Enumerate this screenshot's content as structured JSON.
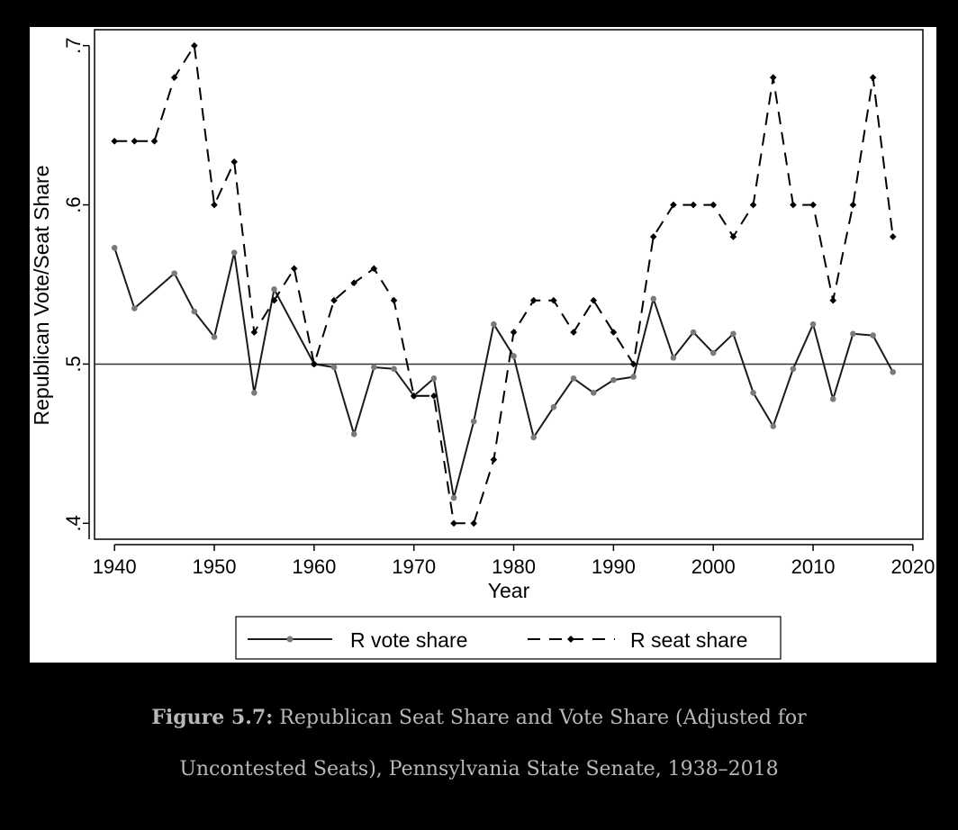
{
  "chart_data": {
    "type": "line",
    "ylabel": "Republican Vote/Seat Share",
    "xlabel": "Year",
    "xlim": [
      1938,
      2021
    ],
    "ylim": [
      0.39,
      0.71
    ],
    "xticks": [
      1940,
      1950,
      1960,
      1970,
      1980,
      1990,
      2000,
      2010,
      2020
    ],
    "xtick_labels": [
      "1940",
      "1950",
      "1960",
      "1970",
      "1980",
      "1990",
      "2000",
      "2010",
      "2020"
    ],
    "yticks": [
      0.4,
      0.5,
      0.6,
      0.7
    ],
    "ytick_labels": [
      ".4",
      ".5",
      ".6",
      ".7"
    ],
    "reference_line_y": 0.5,
    "grid": false,
    "legend_position": "bottom",
    "series": [
      {
        "name": "R vote share",
        "style": "solid",
        "marker": "dot",
        "color": "#1a1a1a",
        "marker_color": "#7a7a7a",
        "x": [
          1940,
          1942,
          1946,
          1948,
          1950,
          1952,
          1954,
          1956,
          1960,
          1962,
          1964,
          1966,
          1968,
          1970,
          1972,
          1974,
          1976,
          1978,
          1980,
          1982,
          1984,
          1986,
          1988,
          1990,
          1992,
          1994,
          1996,
          1998,
          2000,
          2002,
          2004,
          2006,
          2008,
          2010,
          2012,
          2014,
          2016,
          2018
        ],
        "y": [
          0.573,
          0.535,
          0.557,
          0.533,
          0.517,
          0.57,
          0.482,
          0.547,
          0.5,
          0.498,
          0.456,
          0.498,
          0.497,
          0.48,
          0.491,
          0.416,
          0.464,
          0.525,
          0.505,
          0.454,
          0.473,
          0.491,
          0.482,
          0.49,
          0.492,
          0.541,
          0.504,
          0.52,
          0.507,
          0.519,
          0.482,
          0.461,
          0.497,
          0.525,
          0.478,
          0.519,
          0.518,
          0.495
        ]
      },
      {
        "name": "R seat share",
        "style": "dashed",
        "marker": "diamond",
        "color": "#000000",
        "marker_color": "#000000",
        "x": [
          1940,
          1942,
          1944,
          1946,
          1948,
          1950,
          1952,
          1954,
          1956,
          1958,
          1960,
          1962,
          1964,
          1966,
          1968,
          1970,
          1972,
          1974,
          1976,
          1978,
          1980,
          1982,
          1984,
          1986,
          1988,
          1990,
          1992,
          1994,
          1996,
          1998,
          2000,
          2002,
          2004,
          2006,
          2008,
          2010,
          2012,
          2014,
          2016,
          2018
        ],
        "y": [
          0.64,
          0.64,
          0.64,
          0.68,
          0.7,
          0.6,
          0.627,
          0.52,
          0.54,
          0.56,
          0.5,
          0.54,
          0.551,
          0.56,
          0.54,
          0.48,
          0.48,
          0.4,
          0.4,
          0.44,
          0.52,
          0.54,
          0.54,
          0.52,
          0.54,
          0.52,
          0.5,
          0.58,
          0.6,
          0.6,
          0.6,
          0.58,
          0.6,
          0.68,
          0.6,
          0.6,
          0.54,
          0.6,
          0.68,
          0.58
        ]
      }
    ]
  },
  "caption": {
    "label": "Figure 5.7:",
    "line1": " Republican Seat Share and Vote Share (Adjusted for",
    "line2": "Uncontested Seats), Pennsylvania State Senate, 1938–2018"
  }
}
